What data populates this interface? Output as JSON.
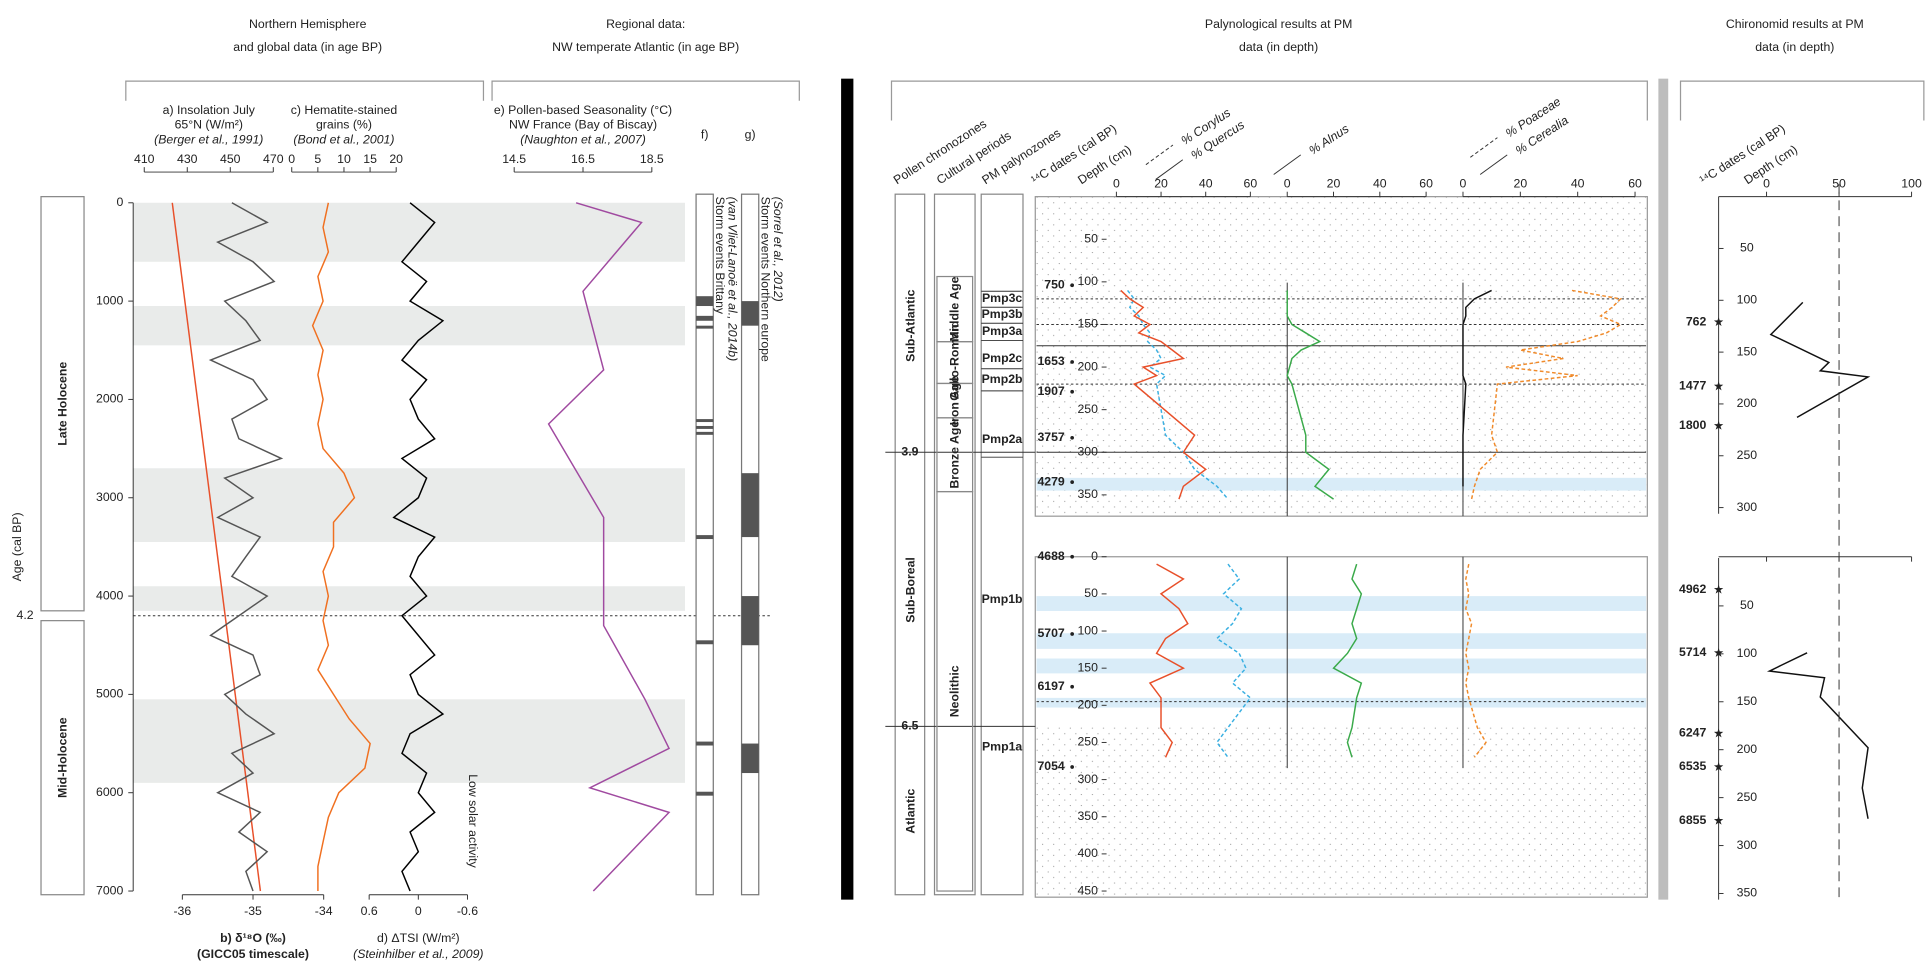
{
  "sections": [
    {
      "title": [
        "Northern Hemisphere",
        "and global data (in age BP)"
      ]
    },
    {
      "title": [
        "Regional data:",
        "NW temperate Atlantic (in age BP)"
      ]
    },
    {
      "title": [
        "Palynological results at PM",
        "data (in depth)"
      ]
    },
    {
      "title": [
        "Chironomid results at PM",
        "data (in depth)"
      ]
    }
  ],
  "chart_data": [
    {
      "type": "line",
      "title": [
        "a) Insolation July",
        "65°N (W/m²)"
      ],
      "subtitle": "(Berger et al., 1991)",
      "xlabel": "Age (cal BP)",
      "xlim": [
        0,
        7000
      ],
      "xticks": [
        0,
        1000,
        2000,
        3000,
        4000,
        5000,
        6000,
        7000
      ],
      "ylim": [
        410,
        470
      ],
      "yticks": [
        410,
        430,
        450,
        470
      ],
      "x": [
        0,
        7000
      ],
      "series": [
        {
          "color": "#e8502a",
          "values": [
            423,
            464
          ]
        }
      ],
      "bands": [
        [
          0,
          600
        ],
        [
          1050,
          1450
        ],
        [
          2700,
          3450
        ],
        [
          3900,
          4150
        ],
        [
          5050,
          5900
        ]
      ],
      "boundary": {
        "value": 4200,
        "label": "4.2"
      },
      "periods": [
        "Late Holocene",
        "Mid-Holocene"
      ]
    },
    {
      "type": "line",
      "title": [
        "b) δ¹⁸O (‰)"
      ],
      "subtitle": "(GICC05 timescale)",
      "xlim": [
        0,
        7000
      ],
      "ylim": [
        -36,
        -34
      ],
      "yticks": [
        -36,
        -35,
        -34
      ],
      "x": [
        0,
        200,
        400,
        600,
        800,
        1000,
        1200,
        1400,
        1600,
        1800,
        2000,
        2200,
        2400,
        2600,
        2800,
        3000,
        3200,
        3400,
        3600,
        3800,
        4000,
        4200,
        4400,
        4600,
        4800,
        5000,
        5200,
        5400,
        5600,
        5800,
        6000,
        6200,
        6400,
        6600,
        6800,
        7000
      ],
      "series": [
        {
          "color": "#555555",
          "values": [
            -35.3,
            -34.8,
            -35.5,
            -35.0,
            -34.7,
            -35.4,
            -35.1,
            -34.9,
            -35.6,
            -35.0,
            -34.8,
            -35.3,
            -35.2,
            -34.6,
            -35.4,
            -35.0,
            -35.5,
            -34.9,
            -35.1,
            -35.3,
            -34.8,
            -35.2,
            -35.6,
            -35.0,
            -34.9,
            -35.4,
            -35.1,
            -34.7,
            -35.3,
            -35.0,
            -35.5,
            -34.9,
            -35.2,
            -34.8,
            -35.1,
            -35.0
          ]
        }
      ]
    },
    {
      "type": "line",
      "title": [
        "c) Hematite-stained",
        "grains (%)"
      ],
      "subtitle": "(Bond et al., 2001)",
      "xlim": [
        0,
        7000
      ],
      "ylim": [
        0,
        20
      ],
      "yticks": [
        0,
        5,
        10,
        15,
        20
      ],
      "x": [
        0,
        250,
        500,
        750,
        1000,
        1250,
        1500,
        1750,
        2000,
        2250,
        2500,
        2750,
        3000,
        3250,
        3500,
        3750,
        4000,
        4250,
        4500,
        4750,
        5000,
        5250,
        5500,
        5750,
        6000,
        6250,
        6500,
        6750,
        7000
      ],
      "series": [
        {
          "color": "#f07020",
          "values": [
            7,
            6,
            7,
            5,
            6,
            4,
            6,
            5,
            6,
            5,
            6,
            10,
            12,
            8,
            8,
            6,
            7,
            6,
            7,
            5,
            8,
            11,
            15,
            14,
            9,
            7,
            6,
            5,
            5
          ]
        }
      ]
    },
    {
      "type": "line",
      "title": [
        "d) ΔTSI (W/m²)"
      ],
      "subtitle": "(Steinhilber et al., 2009)",
      "annotation": "Low solar activity",
      "xlim": [
        0,
        7000
      ],
      "ylim": [
        0.6,
        -0.6
      ],
      "yticks": [
        0.6,
        0,
        -0.6
      ],
      "x": [
        0,
        200,
        400,
        600,
        800,
        1000,
        1200,
        1400,
        1600,
        1800,
        2000,
        2200,
        2400,
        2600,
        2800,
        3000,
        3200,
        3400,
        3600,
        3800,
        4000,
        4200,
        4400,
        4600,
        4800,
        5000,
        5200,
        5400,
        5600,
        5800,
        6000,
        6200,
        6400,
        6600,
        6800,
        7000
      ],
      "series": [
        {
          "color": "#000000",
          "values": [
            0.1,
            -0.2,
            0.0,
            0.2,
            -0.1,
            0.1,
            -0.3,
            0.0,
            0.2,
            -0.1,
            0.1,
            0.0,
            -0.2,
            0.2,
            -0.1,
            0.0,
            0.3,
            -0.2,
            0.0,
            0.1,
            -0.1,
            0.2,
            0.0,
            -0.2,
            0.1,
            0.0,
            -0.3,
            0.1,
            0.2,
            -0.1,
            0.0,
            -0.2,
            0.1,
            0.0,
            0.2,
            0.1
          ]
        }
      ]
    },
    {
      "type": "line",
      "title": [
        "e) Pollen-based Seasonality (°C)",
        "NW France (Bay of Biscay)"
      ],
      "subtitle": "(Naughton et al., 2007)",
      "xlim": [
        0,
        7000
      ],
      "ylim": [
        14.5,
        18.5
      ],
      "yticks": [
        14.5,
        16.5,
        18.5
      ],
      "x": [
        0,
        200,
        900,
        1700,
        2250,
        3200,
        4300,
        5050,
        5550,
        5950,
        6200,
        7000
      ],
      "series": [
        {
          "color": "#a04aa0",
          "values": [
            16.3,
            18.2,
            16.5,
            17.1,
            15.5,
            17.1,
            17.1,
            18.3,
            19.0,
            16.7,
            19.0,
            16.8
          ]
        }
      ]
    },
    {
      "type": "event",
      "title": "f)",
      "labels": [
        "Storm events Brittany",
        "(van Vliet-Lanoë et al., 2014b)"
      ],
      "xlim": [
        0,
        7000
      ],
      "intervals": [
        [
          950,
          1050
        ],
        [
          1150,
          1200
        ],
        [
          1250,
          1280
        ],
        [
          2200,
          2230
        ],
        [
          2270,
          2300
        ],
        [
          2330,
          2360
        ],
        [
          3380,
          3420
        ],
        [
          4450,
          4490
        ],
        [
          5480,
          5520
        ],
        [
          5990,
          6030
        ]
      ]
    },
    {
      "type": "event",
      "title": "g)",
      "labels": [
        "Storm events Northern europe",
        "(Sorrel et al., 2012)"
      ],
      "xlim": [
        0,
        7000
      ],
      "intervals": [
        [
          1000,
          1250
        ],
        [
          2750,
          3400
        ],
        [
          4000,
          4500
        ],
        [
          5500,
          5800
        ]
      ]
    },
    {
      "type": "line",
      "xlim": [
        0,
        375
      ],
      "xticks": [
        50,
        100,
        150,
        200,
        250,
        300,
        350
      ],
      "columns": [
        "Pollen chronozones",
        "Cultural periods",
        "PM palynozones",
        "¹⁴C dates (cal BP)",
        "Depth (cm)"
      ],
      "chronozones": [
        "Sub-Atlantic",
        "Sub-Boreal",
        "Atlantic"
      ],
      "boundaries": [
        3.9,
        6.5
      ],
      "cultural_periods": [
        "Middle Age",
        "Gallo-Roman",
        "Iron Age",
        "Bronze Age",
        "Neolithic"
      ],
      "palynozones": [
        "Pmp3c",
        "Pmp3b",
        "Pmp3a",
        "Pmp2c",
        "Pmp2b",
        "Pmp2a",
        "Pmp1b",
        "Pmp1a"
      ],
      "yaxes": [
        {
          "ylim": [
            0,
            60
          ],
          "yticks": [
            0,
            20,
            40,
            60
          ]
        },
        {
          "ylim": [
            0,
            60
          ],
          "yticks": [
            0,
            20,
            40,
            60
          ]
        },
        {
          "ylim": [
            0,
            60
          ],
          "yticks": [
            0,
            20,
            40,
            60
          ]
        }
      ],
      "x": [
        110,
        120,
        130,
        140,
        150,
        160,
        170,
        180,
        190,
        200,
        210,
        220,
        280,
        300,
        320,
        340,
        355
      ],
      "series": [
        {
          "name": "% Corylus",
          "color": "#3ab0e2",
          "dash": true,
          "axis": 0,
          "values": [
            5,
            8,
            6,
            10,
            12,
            15,
            14,
            18,
            20,
            15,
            22,
            18,
            22,
            30,
            35,
            45,
            50
          ]
        },
        {
          "name": "% Quercus",
          "color": "#e8502a",
          "dash": false,
          "axis": 0,
          "values": [
            2,
            6,
            12,
            8,
            15,
            10,
            20,
            25,
            30,
            12,
            18,
            8,
            35,
            30,
            40,
            30,
            28
          ]
        },
        {
          "name": "% Alnus",
          "color": "#3aaa4a",
          "dash": false,
          "axis": 1,
          "values": [
            0,
            0,
            0,
            0,
            2,
            8,
            14,
            6,
            2,
            1,
            0,
            2,
            8,
            8,
            18,
            12,
            20
          ]
        },
        {
          "name": "% Poaceae",
          "color": "#f08a2a",
          "dash": true,
          "axis": 2,
          "values": [
            38,
            55,
            52,
            48,
            55,
            50,
            40,
            20,
            35,
            15,
            40,
            12,
            10,
            12,
            6,
            4,
            3
          ]
        },
        {
          "name": "% Cerealia",
          "color": "#111111",
          "dash": false,
          "axis": 2,
          "values": [
            10,
            4,
            1,
            1,
            0,
            0,
            0,
            0,
            0,
            0,
            0,
            1,
            0,
            0,
            0,
            0,
            null
          ]
        }
      ],
      "bands": [
        [
          330,
          345
        ]
      ],
      "zone_depths": [
        120,
        150,
        175,
        220,
        300
      ],
      "dates": [
        {
          "age": 750,
          "depth": 104
        },
        {
          "age": 1653,
          "depth": 194
        },
        {
          "age": 1907,
          "depth": 229
        },
        {
          "age": 3757,
          "depth": 283
        },
        {
          "age": 4279,
          "depth": 335
        }
      ]
    },
    {
      "type": "line",
      "xlim": [
        0,
        450
      ],
      "xticks": [
        0,
        50,
        100,
        150,
        200,
        250,
        300,
        350,
        400,
        450
      ],
      "x": [
        10,
        30,
        50,
        70,
        90,
        110,
        130,
        150,
        170,
        190,
        230,
        250,
        270
      ],
      "series": [
        {
          "color": "#3ab0e2",
          "dash": true,
          "axis": 0,
          "values": [
            50,
            55,
            48,
            56,
            52,
            45,
            55,
            58,
            52,
            60,
            50,
            45,
            50
          ]
        },
        {
          "color": "#e8502a",
          "dash": false,
          "axis": 0,
          "values": [
            18,
            30,
            20,
            28,
            32,
            22,
            18,
            30,
            15,
            20,
            20,
            25,
            22
          ]
        },
        {
          "color": "#3aaa4a",
          "dash": false,
          "axis": 1,
          "values": [
            30,
            28,
            32,
            30,
            28,
            30,
            26,
            20,
            32,
            30,
            28,
            26,
            28
          ]
        },
        {
          "color": "#f08a2a",
          "dash": true,
          "axis": 2,
          "values": [
            2,
            1,
            2,
            1,
            3,
            2,
            1,
            2,
            1,
            2,
            5,
            8,
            4
          ]
        }
      ],
      "bands": [
        [
          53,
          73
        ],
        [
          103,
          124
        ],
        [
          137,
          157
        ],
        [
          190,
          203
        ]
      ],
      "zone_depths": [
        195
      ],
      "dates": [
        {
          "age": 4688,
          "depth": 0
        },
        {
          "age": 5707,
          "depth": 104
        },
        {
          "age": 6197,
          "depth": 175
        },
        {
          "age": 7054,
          "depth": 283
        }
      ]
    },
    {
      "type": "line",
      "columns": [
        "¹⁴C dates (cal BP)",
        "Depth (cm)"
      ],
      "xlim": [
        0,
        300
      ],
      "xticks": [
        50,
        100,
        150,
        200,
        250,
        300
      ],
      "ylim": [
        0,
        100
      ],
      "yticks": [
        0,
        50,
        100
      ],
      "refline": 50,
      "x": [
        102,
        133,
        160,
        168,
        174,
        213
      ],
      "series": [
        {
          "color": "#111111",
          "values": [
            25,
            3,
            43,
            37,
            70,
            21
          ]
        }
      ],
      "dates": [
        {
          "age": 762,
          "depth": 121
        },
        {
          "age": 1477,
          "depth": 183
        },
        {
          "age": 1800,
          "depth": 221
        }
      ]
    },
    {
      "type": "line",
      "xlim": [
        0,
        350
      ],
      "xticks": [
        50,
        100,
        150,
        200,
        250,
        300,
        350
      ],
      "x": [
        99,
        112,
        118,
        125,
        145,
        198,
        240,
        272
      ],
      "series": [
        {
          "color": "#111111",
          "values": [
            28,
            10,
            2,
            40,
            37,
            70,
            66,
            70
          ]
        }
      ],
      "dates": [
        {
          "age": 4962,
          "depth": 33
        },
        {
          "age": 5714,
          "depth": 99
        },
        {
          "age": 6247,
          "depth": 183
        },
        {
          "age": 6535,
          "depth": 218
        },
        {
          "age": 6855,
          "depth": 274
        }
      ]
    }
  ]
}
